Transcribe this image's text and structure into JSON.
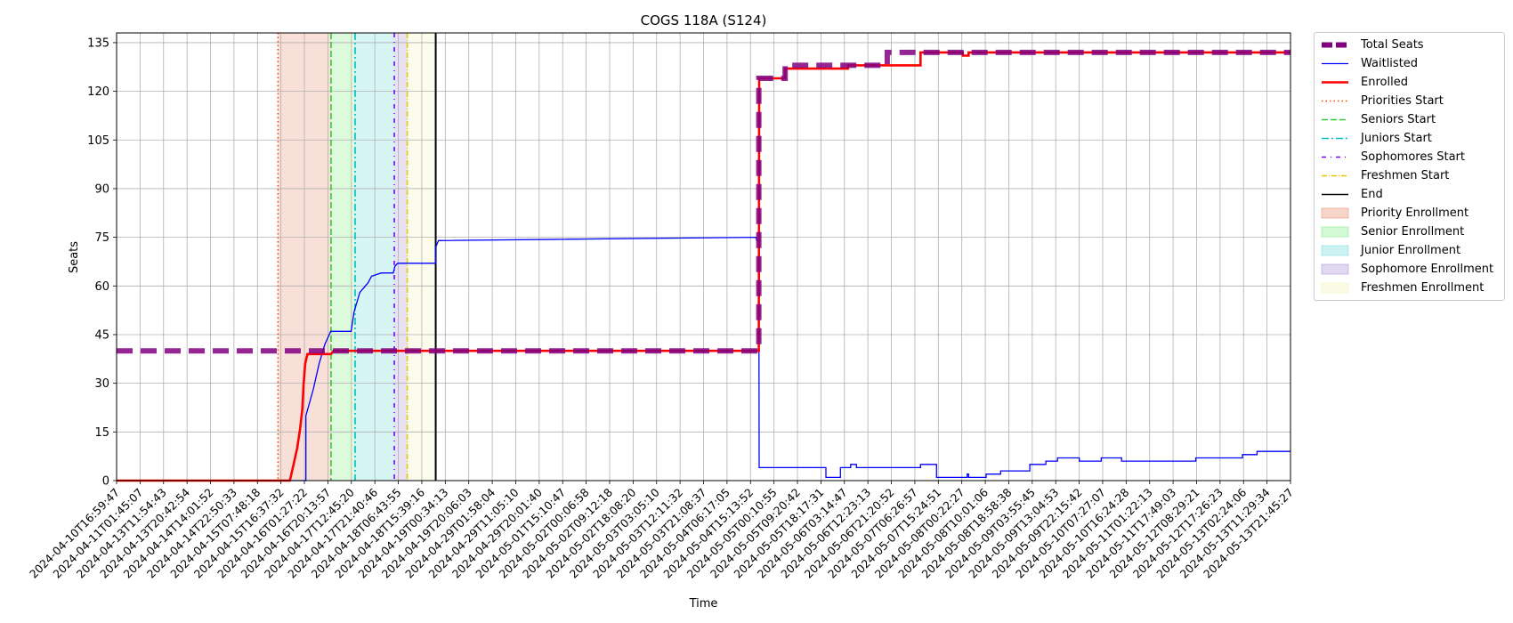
{
  "chart_data": {
    "type": "line",
    "title": "COGS 118A (S124)",
    "xlabel": "Time",
    "ylabel": "Seats",
    "xlim": [
      "2024-04-10T16:59:47",
      "2024-05-14T07:00:00"
    ],
    "ylim": [
      0,
      138
    ],
    "yticks": [
      0,
      15,
      30,
      45,
      60,
      75,
      90,
      105,
      120,
      135
    ],
    "xtick_labels": [
      "2024-04-10T16:59:47",
      "2024-04-11T01:45:07",
      "2024-04-13T11:54:43",
      "2024-04-13T20:42:54",
      "2024-04-14T14:01:52",
      "2024-04-14T22:50:33",
      "2024-04-15T07:48:18",
      "2024-04-15T16:37:32",
      "2024-04-16T01:27:22",
      "2024-04-16T20:13:57",
      "2024-04-17T12:45:20",
      "2024-04-17T21:40:46",
      "2024-04-18T06:43:55",
      "2024-04-18T15:39:16",
      "2024-04-19T00:34:13",
      "2024-04-19T20:06:03",
      "2024-04-29T01:58:04",
      "2024-04-29T11:05:10",
      "2024-04-29T20:01:40",
      "2024-05-01T15:10:47",
      "2024-05-02T00:06:58",
      "2024-05-02T09:12:18",
      "2024-05-02T18:08:20",
      "2024-05-03T03:05:10",
      "2024-05-03T12:11:32",
      "2024-05-03T21:08:37",
      "2024-05-04T06:17:05",
      "2024-05-04T15:13:52",
      "2024-05-05T00:10:55",
      "2024-05-05T09:20:42",
      "2024-05-05T18:17:31",
      "2024-05-06T03:14:47",
      "2024-05-06T12:23:13",
      "2024-05-06T21:20:52",
      "2024-05-07T06:26:57",
      "2024-05-07T15:24:51",
      "2024-05-08T00:22:27",
      "2024-05-08T10:01:06",
      "2024-05-08T18:58:38",
      "2024-05-09T03:55:45",
      "2024-05-09T13:04:53",
      "2024-05-09T22:15:42",
      "2024-05-10T07:27:07",
      "2024-05-10T16:24:28",
      "2024-05-11T01:22:13",
      "2024-05-11T17:49:03",
      "2024-05-12T08:29:21",
      "2024-05-12T17:26:23",
      "2024-05-13T02:24:06",
      "2024-05-13T11:29:34",
      "2024-05-13T21:45:27"
    ],
    "grid": true,
    "legend_position": "outside-right",
    "series": [
      {
        "name": "Total Seats",
        "color": "#800080",
        "style": "dashed-thick",
        "points": [
          [
            "2024-04-10T16:59:47",
            40
          ],
          [
            "2024-04-29T01:58:04",
            40
          ],
          [
            "2024-04-29T01:58:04",
            124
          ],
          [
            "2024-04-29T20:01:40",
            124
          ],
          [
            "2024-04-29T20:01:40",
            128
          ],
          [
            "2024-05-02T18:08:20",
            128
          ],
          [
            "2024-05-02T18:08:20",
            132
          ],
          [
            "2024-05-14T07:00:00",
            132
          ]
        ]
      },
      {
        "name": "Waitlisted",
        "color": "#0000ff",
        "style": "solid-thin",
        "points": [
          [
            "2024-04-10T16:59:47",
            0
          ],
          [
            "2024-04-16T03:00:00",
            0
          ],
          [
            "2024-04-16T03:00:00",
            20
          ],
          [
            "2024-04-16T08:00:00",
            28
          ],
          [
            "2024-04-16T12:00:00",
            36
          ],
          [
            "2024-04-16T16:00:00",
            42
          ],
          [
            "2024-04-16T20:00:00",
            46
          ],
          [
            "2024-04-17T10:00:00",
            46
          ],
          [
            "2024-04-17T12:00:00",
            52
          ],
          [
            "2024-04-17T16:00:00",
            58
          ],
          [
            "2024-04-17T21:40:46",
            61
          ],
          [
            "2024-04-18T00:00:00",
            63
          ],
          [
            "2024-04-18T06:43:55",
            64
          ],
          [
            "2024-04-18T15:00:00",
            64
          ],
          [
            "2024-04-18T16:00:00",
            66
          ],
          [
            "2024-04-18T18:00:00",
            67
          ],
          [
            "2024-04-19T20:06:03",
            67
          ],
          [
            "2024-04-19T20:06:03",
            72
          ],
          [
            "2024-04-19T22:00:00",
            74
          ],
          [
            "2024-04-29T00:00:00",
            75
          ],
          [
            "2024-04-29T00:30:00",
            74
          ],
          [
            "2024-04-29T01:58:04",
            74
          ],
          [
            "2024-04-29T02:10:00",
            4
          ],
          [
            "2024-05-01T00:00:00",
            4
          ],
          [
            "2024-05-01T00:00:00",
            1
          ],
          [
            "2024-05-01T10:00:00",
            1
          ],
          [
            "2024-05-01T10:00:00",
            4
          ],
          [
            "2024-05-01T17:00:00",
            4
          ],
          [
            "2024-05-01T17:00:00",
            5
          ],
          [
            "2024-05-01T21:00:00",
            5
          ],
          [
            "2024-05-01T21:00:00",
            4
          ],
          [
            "2024-05-03T17:00:00",
            4
          ],
          [
            "2024-05-03T17:00:00",
            5
          ],
          [
            "2024-05-04T04:00:00",
            5
          ],
          [
            "2024-05-04T04:00:00",
            1
          ],
          [
            "2024-05-05T01:00:00",
            1
          ],
          [
            "2024-05-05T01:00:00",
            2
          ],
          [
            "2024-05-05T02:00:00",
            2
          ],
          [
            "2024-05-05T02:00:00",
            1
          ],
          [
            "2024-05-05T14:00:00",
            1
          ],
          [
            "2024-05-05T14:00:00",
            2
          ],
          [
            "2024-05-06T00:00:00",
            2
          ],
          [
            "2024-05-06T00:00:00",
            3
          ],
          [
            "2024-05-06T20:00:00",
            3
          ],
          [
            "2024-05-06T20:00:00",
            5
          ],
          [
            "2024-05-07T07:00:00",
            5
          ],
          [
            "2024-05-07T07:00:00",
            6
          ],
          [
            "2024-05-07T15:00:00",
            6
          ],
          [
            "2024-05-07T15:00:00",
            7
          ],
          [
            "2024-05-08T06:00:00",
            7
          ],
          [
            "2024-05-08T06:00:00",
            6
          ],
          [
            "2024-05-08T21:00:00",
            6
          ],
          [
            "2024-05-08T21:00:00",
            7
          ],
          [
            "2024-05-09T11:00:00",
            7
          ],
          [
            "2024-05-09T11:00:00",
            6
          ],
          [
            "2024-05-11T14:00:00",
            6
          ],
          [
            "2024-05-11T14:00:00",
            7
          ],
          [
            "2024-05-12T22:00:00",
            7
          ],
          [
            "2024-05-12T22:00:00",
            8
          ],
          [
            "2024-05-13T08:00:00",
            8
          ],
          [
            "2024-05-13T08:00:00",
            9
          ],
          [
            "2024-05-14T07:00:00",
            9
          ]
        ]
      },
      {
        "name": "Enrolled",
        "color": "#ff0000",
        "style": "solid-thick",
        "points": [
          [
            "2024-04-10T16:59:47",
            0
          ],
          [
            "2024-04-15T16:00:00",
            0
          ],
          [
            "2024-04-15T17:00:00",
            2
          ],
          [
            "2024-04-15T19:00:00",
            6
          ],
          [
            "2024-04-15T21:00:00",
            10
          ],
          [
            "2024-04-15T23:00:00",
            16
          ],
          [
            "2024-04-16T00:30:00",
            22
          ],
          [
            "2024-04-16T01:27:22",
            30
          ],
          [
            "2024-04-16T02:30:00",
            36
          ],
          [
            "2024-04-16T04:00:00",
            39
          ],
          [
            "2024-04-16T20:13:57",
            39
          ],
          [
            "2024-04-16T22:00:00",
            40
          ],
          [
            "2024-04-29T01:58:04",
            40
          ],
          [
            "2024-04-29T02:10:00",
            124
          ],
          [
            "2024-04-29T20:01:40",
            124
          ],
          [
            "2024-04-29T20:01:40",
            127
          ],
          [
            "2024-05-01T15:10:47",
            127
          ],
          [
            "2024-05-01T15:10:47",
            128
          ],
          [
            "2024-05-03T17:00:00",
            128
          ],
          [
            "2024-05-03T17:00:00",
            132
          ],
          [
            "2024-05-04T22:00:00",
            132
          ],
          [
            "2024-05-04T22:00:00",
            131
          ],
          [
            "2024-05-05T02:00:00",
            131
          ],
          [
            "2024-05-05T02:00:00",
            132
          ],
          [
            "2024-05-14T07:00:00",
            132
          ]
        ]
      }
    ],
    "phase_starts": [
      {
        "name": "Priorities Start",
        "time": "2024-04-15T07:48:18",
        "color": "#ff4500",
        "dash": "1.5,3"
      },
      {
        "name": "Seniors Start",
        "time": "2024-04-16T20:13:57",
        "color": "#32cd32",
        "dash": "7,3"
      },
      {
        "name": "Juniors Start",
        "time": "2024-04-17T12:45:20",
        "color": "#00bfbf",
        "dash": "8,3,2,3"
      },
      {
        "name": "Sophomores Start",
        "time": "2024-04-18T15:39:16",
        "color": "#7f00ff",
        "dash": "5,5,1,5"
      },
      {
        "name": "Freshmen Start",
        "time": "2024-04-19T00:34:13",
        "color": "#e8c800",
        "dash": "6,2,1,2"
      },
      {
        "name": "End",
        "time": "2024-04-19T20:06:03",
        "color": "#000000",
        "dash": ""
      }
    ],
    "phase_spans": [
      {
        "name": "Priority Enrollment",
        "start": "2024-04-15T07:48:18",
        "end": "2024-04-16T20:13:57",
        "color": "#e9967a"
      },
      {
        "name": "Senior Enrollment",
        "start": "2024-04-16T20:13:57",
        "end": "2024-04-17T12:45:20",
        "color": "#90ee90"
      },
      {
        "name": "Junior Enrollment",
        "start": "2024-04-17T12:45:20",
        "end": "2024-04-18T15:39:16",
        "color": "#7fdfdf"
      },
      {
        "name": "Sophomore Enrollment",
        "start": "2024-04-18T15:39:16",
        "end": "2024-04-19T00:34:13",
        "color": "#b19cd9"
      },
      {
        "name": "Freshmen Enrollment",
        "start": "2024-04-19T00:34:13",
        "end": "2024-04-19T20:06:03",
        "color": "#f5f5c0"
      }
    ]
  }
}
